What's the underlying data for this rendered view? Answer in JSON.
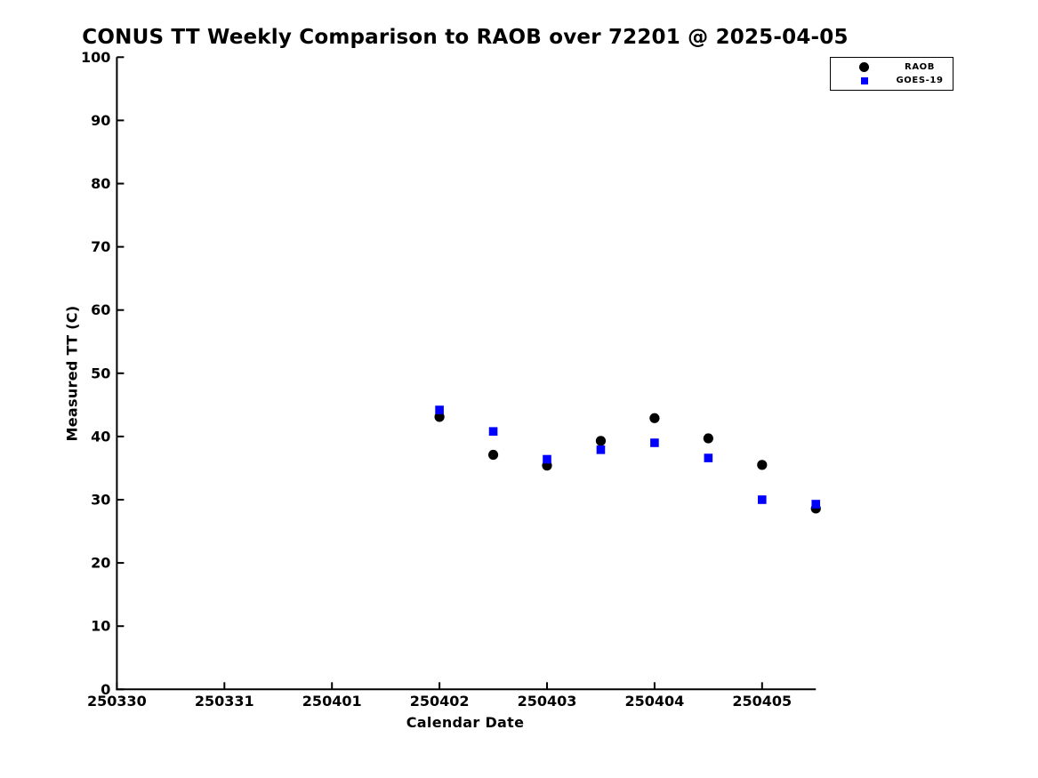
{
  "chart_data": {
    "type": "scatter",
    "title": "CONUS TT Weekly Comparison to RAOB over 72201 @ 2025-04-05",
    "xlabel": "Calendar Date",
    "ylabel": "Measured TT (C)",
    "background_color": "#ffffff",
    "axis_color": "#000000",
    "grid": "off",
    "x_axis": {
      "tick_labels": [
        "250330",
        "250331",
        "250401",
        "250402",
        "250403",
        "250404",
        "250405"
      ],
      "tick_offsets": [
        0,
        1,
        2,
        3,
        4,
        5,
        6
      ],
      "xlim_offsets": [
        0,
        6.5
      ]
    },
    "y_axis": {
      "ticks": [
        0,
        10,
        20,
        30,
        40,
        50,
        60,
        70,
        80,
        90,
        100
      ],
      "ylim": [
        0,
        100
      ]
    },
    "series": [
      {
        "name": "RAOB",
        "marker": "circle",
        "color": "#000000",
        "x_dates": [
          "250402.0",
          "250402.5",
          "250403.0",
          "250403.5",
          "250404.0",
          "250404.5",
          "250405.0",
          "250405.5"
        ],
        "x_offsets": [
          3,
          3.5,
          4,
          4.5,
          5,
          5.5,
          6,
          6.5
        ],
        "values": [
          43.1,
          37.1,
          35.4,
          39.3,
          42.9,
          39.7,
          35.5,
          28.6
        ]
      },
      {
        "name": "GOES-19",
        "marker": "square",
        "color": "#0000ff",
        "x_dates": [
          "250402.0",
          "250402.5",
          "250403.0",
          "250403.5",
          "250404.0",
          "250404.5",
          "250405.0",
          "250405.5"
        ],
        "x_offsets": [
          3,
          3.5,
          4,
          4.5,
          5,
          5.5,
          6,
          6.5
        ],
        "values": [
          44.2,
          40.8,
          36.4,
          37.9,
          39.0,
          36.6,
          30.0,
          29.3
        ]
      }
    ],
    "legend": {
      "position": "top-right",
      "entries": [
        "RAOB",
        "GOES-19"
      ]
    }
  }
}
